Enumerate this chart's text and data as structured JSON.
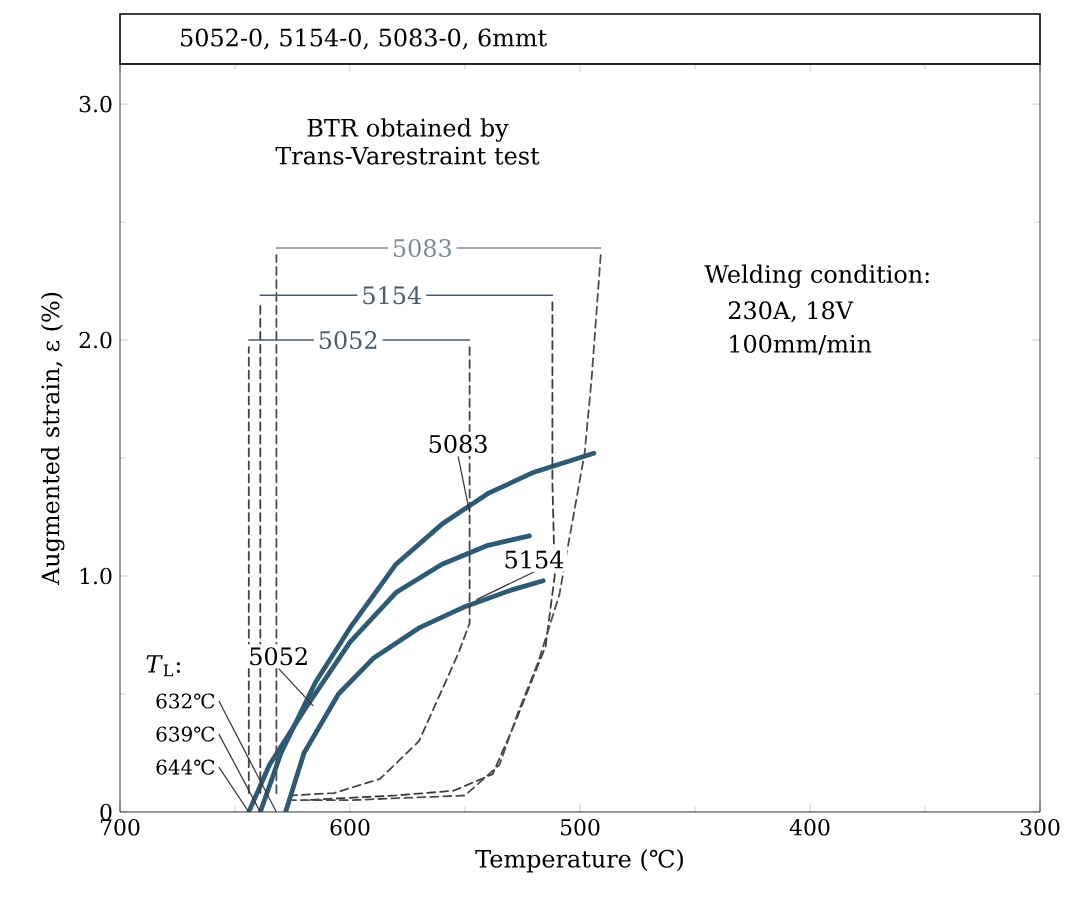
{
  "chart_data": {
    "type": "line",
    "title": "5052-0, 5154-0, 5083-0,   6mmt",
    "xlabel": "Temperature (℃)",
    "ylabel": "Augmented strain, ε (%)",
    "xlim": [
      700,
      300
    ],
    "ylim": [
      0,
      3.17
    ],
    "xticks": [
      700,
      600,
      500,
      400,
      300
    ],
    "yticks": [
      0,
      {
        "value": 1,
        "label": "1.0"
      },
      {
        "value": 2,
        "label": "2.0"
      },
      {
        "value": 3,
        "label": "3.0"
      }
    ],
    "grid": false,
    "series": [
      {
        "color": "#2d5a74",
        "line_style": "solid",
        "x": [
          639,
          630,
          615,
          600,
          580,
          560,
          540,
          520,
          494
        ],
        "values": [
          0,
          0.25,
          0.55,
          0.78,
          1.05,
          1.22,
          1.35,
          1.44,
          1.52
        ]
      },
      {
        "color": "#2d5a74",
        "line_style": "solid",
        "x": [
          644,
          635,
          620,
          600,
          580,
          560,
          540,
          522
        ],
        "values": [
          0,
          0.2,
          0.43,
          0.72,
          0.93,
          1.05,
          1.13,
          1.17
        ]
      },
      {
        "color": "#2d5a74",
        "line_style": "solid",
        "x": [
          628,
          620,
          605,
          590,
          570,
          550,
          530,
          516
        ],
        "values": [
          0,
          0.25,
          0.5,
          0.65,
          0.78,
          0.87,
          0.94,
          0.98
        ]
      },
      {
        "color": "#444444",
        "line_style": "dashed",
        "x": [
          644,
          644
        ],
        "values": [
          0.08,
          1.97
        ]
      },
      {
        "color": "#3c3c3c",
        "line_style": "dashed",
        "x": [
          639,
          639
        ],
        "values": [
          0.08,
          2.16
        ]
      },
      {
        "color": "#4c4c4c",
        "line_style": "dashed",
        "x": [
          632,
          632
        ],
        "values": [
          0.08,
          2.36
        ]
      },
      {
        "color": "#444444",
        "line_style": "dashed",
        "x": [
          548,
          548,
          553,
          570,
          587,
          607,
          625
        ],
        "values": [
          1.97,
          0.8,
          0.67,
          0.3,
          0.14,
          0.08,
          0.07
        ]
      },
      {
        "color": "#3c3c3c",
        "line_style": "dashed",
        "x": [
          512,
          512,
          511,
          515,
          520,
          529,
          538,
          555,
          580,
          620
        ],
        "values": [
          2.16,
          1.4,
          1.0,
          0.7,
          0.58,
          0.36,
          0.16,
          0.09,
          0.07,
          0.05
        ]
      },
      {
        "color": "#4c4c4c",
        "line_style": "dashed",
        "x": [
          491,
          495,
          498,
          509,
          518,
          527,
          535,
          550,
          600,
          625
        ],
        "values": [
          2.36,
          1.83,
          1.52,
          0.92,
          0.64,
          0.42,
          0.2,
          0.07,
          0.05,
          0.05
        ]
      },
      {
        "name": "5083",
        "color": "#7d8c99",
        "line_style": "solid",
        "x": [
          632,
          491
        ],
        "values": [
          2.39,
          2.39
        ]
      },
      {
        "name": "5154",
        "color": "#4a5c6a",
        "line_style": "solid",
        "x": [
          639,
          512
        ],
        "values": [
          2.19,
          2.19
        ]
      },
      {
        "name": "5052",
        "color": "#4a5c6a",
        "line_style": "solid",
        "x": [
          644,
          548
        ],
        "values": [
          2.0,
          2.0
        ]
      }
    ],
    "annotations": [
      "BTR obtained by Trans-Varestraint test",
      "Welding condition:",
      "230A, 18V",
      "100mm/min",
      "*T*$_{L}$:",
      {
        "text": "632℃",
        "x": 632,
        "y": 0
      },
      {
        "text": "639℃",
        "x": 639,
        "y": 0
      },
      {
        "text": "644℃",
        "x": 644,
        "y": 0
      },
      {
        "text": "5083",
        "x": 548,
        "y": 1.27
      },
      {
        "text": "5154",
        "x": 545,
        "y": 0.9
      },
      {
        "text": "5052",
        "x": 616,
        "y": 0.45
      }
    ]
  }
}
